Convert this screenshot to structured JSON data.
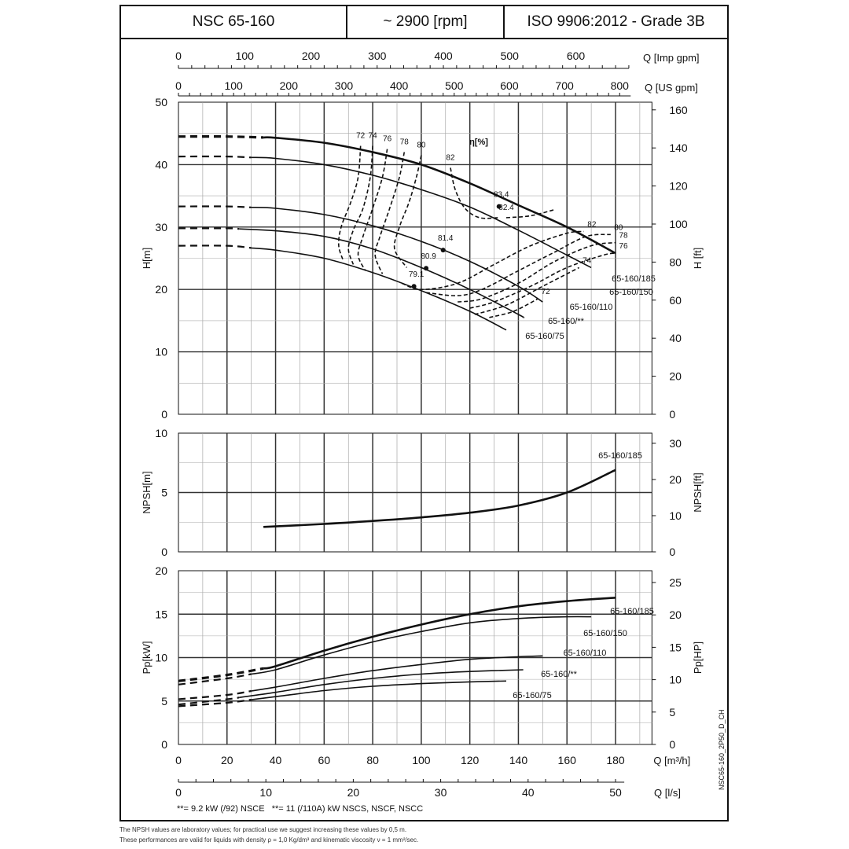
{
  "header": {
    "model": "NSC 65-160",
    "speed": "~ 2900 [rpm]",
    "standard": "ISO 9906:2012 - Grade 3B"
  },
  "notes": [
    "**= 9.2 kW (/92) NSCE",
    "**= 11 (/110A) kW NSCS, NSCF, NSCC"
  ],
  "footnotes": [
    "The NPSH values are laboratory values; for practical use we suggest increasing these values by 0,5 m.",
    "These performances are valid for liquids with density ρ = 1,0 Kg/dm³ and kinematic viscosity ν = 1 mm²/sec."
  ],
  "drawing_code": "NSC65-160_2P50_D_CH",
  "colors": {
    "line": "#111111",
    "grid": "#555555",
    "background": "#ffffff"
  },
  "chart_data": {
    "type": "line",
    "x_axes": {
      "m3h": {
        "label": "Q [m³/h]",
        "ticks": [
          0,
          20,
          40,
          60,
          80,
          100,
          120,
          140,
          160,
          180
        ],
        "range": [
          0,
          195
        ]
      },
      "ls": {
        "label": "Q [l/s]",
        "ticks": [
          0,
          10,
          20,
          30,
          40,
          50
        ]
      },
      "us_gpm": {
        "label": "Q [US gpm]",
        "ticks": [
          0,
          100,
          200,
          300,
          400,
          500,
          600,
          700,
          800
        ]
      },
      "imp_gpm": {
        "label": "Q [Imp gpm]",
        "ticks": [
          0,
          100,
          200,
          300,
          400,
          500,
          600
        ]
      }
    },
    "panels": [
      {
        "id": "head",
        "ylabel": "H[m]",
        "ylabel_right": "H [ft]",
        "ylim": [
          0,
          50
        ],
        "yticks": [
          0,
          10,
          20,
          30,
          40,
          50
        ],
        "yticks_right": [
          0,
          20,
          40,
          60,
          80,
          100,
          120,
          140,
          160
        ],
        "efficiency_label": "η[%]",
        "series": [
          {
            "name": "65-160/185",
            "dash_to": 35,
            "x": [
              0,
              20,
              40,
              60,
              80,
              100,
              120,
              140,
              160,
              180
            ],
            "y": [
              44.5,
              44.5,
              44.3,
              43.5,
              42.0,
              40.0,
              37.0,
              33.5,
              30.0,
              25.8
            ]
          },
          {
            "name": "65-160/150",
            "dash_to": 30,
            "x": [
              0,
              20,
              40,
              60,
              80,
              100,
              120,
              140,
              160,
              170
            ],
            "y": [
              41.3,
              41.3,
              41.0,
              40.0,
              38.3,
              36.0,
              33.2,
              29.5,
              25.5,
              23.5
            ]
          },
          {
            "name": "65-160/110",
            "dash_to": 30,
            "x": [
              0,
              20,
              40,
              60,
              80,
              100,
              120,
              140,
              150
            ],
            "y": [
              33.3,
              33.3,
              33.0,
              32.0,
              30.2,
              27.7,
              24.5,
              20.5,
              18.0
            ]
          },
          {
            "name": "65-160/**",
            "dash_to": 25,
            "x": [
              0,
              20,
              40,
              60,
              80,
              100,
              120,
              140,
              142
            ],
            "y": [
              29.8,
              29.8,
              29.4,
              28.5,
              26.5,
              23.5,
              20.0,
              16.0,
              15.5
            ]
          },
          {
            "name": "65-160/75",
            "dash_to": 30,
            "x": [
              0,
              20,
              40,
              60,
              80,
              100,
              120,
              135
            ],
            "y": [
              27.0,
              27.0,
              26.3,
              25.0,
              22.7,
              19.8,
              16.5,
              13.5
            ]
          }
        ],
        "bep_points": [
          {
            "label": "83.4",
            "x": 132,
            "y": 33.3
          },
          {
            "label": "81.4",
            "x": 109,
            "y": 26.3
          },
          {
            "label": "80.9",
            "x": 102,
            "y": 23.4
          },
          {
            "label": "79.1",
            "x": 97,
            "y": 20.5
          }
        ],
        "efficiency_contours": [
          {
            "label": "72",
            "x": [
              75,
              74,
              71,
              67,
              66,
              68
            ],
            "y": [
              43.0,
              38.0,
              34.0,
              30.0,
              27.0,
              24.5
            ]
          },
          {
            "label": "74",
            "x": [
              80,
              79,
              76,
              72,
              70,
              72
            ],
            "y": [
              43.0,
              38.0,
              33.0,
              29.5,
              26.5,
              24.0
            ]
          },
          {
            "label": "76",
            "x": [
              86,
              84,
              80,
              76,
              74,
              77
            ],
            "y": [
              42.5,
              38.0,
              33.0,
              28.5,
              25.5,
              23.0
            ]
          },
          {
            "label": "78",
            "x": [
              93,
              91,
              87,
              83,
              81,
              84
            ],
            "y": [
              42.0,
              38.0,
              33.0,
              28.5,
              25.5,
              22.5
            ]
          },
          {
            "label": "80",
            "x": [
              100,
              98,
              95,
              91,
              89,
              94
            ],
            "y": [
              41.5,
              38.0,
              34.0,
              30.0,
              26.5,
              23.5
            ]
          },
          {
            "label": "82",
            "x": [
              112,
              114,
              118,
              124,
              132
            ],
            "y": [
              39.5,
              36.0,
              33.0,
              31.5,
              31.5
            ]
          },
          {
            "label": "82.4",
            "x": [
              135,
              145,
              155
            ],
            "y": [
              31.5,
              31.8,
              32.8
            ]
          },
          {
            "label": "82",
            "x": [
              92,
              100,
              115,
              130,
              145,
              160,
              167
            ],
            "y": [
              21.0,
              20.0,
              21.0,
              24.0,
              27.0,
              29.0,
              29.3
            ]
          },
          {
            "label": "80",
            "x": [
              102,
              115,
              125,
              140,
              155,
              168,
              178
            ],
            "y": [
              19.5,
              19.0,
              20.0,
              23.0,
              26.0,
              28.5,
              28.8
            ]
          },
          {
            "label": "78",
            "x": [
              115,
              125,
              140,
              155,
              170,
              180
            ],
            "y": [
              18.0,
              18.5,
              21.0,
              24.5,
              27.0,
              27.5
            ]
          },
          {
            "label": "76",
            "x": [
              120,
              130,
              145,
              160,
              175,
              180
            ],
            "y": [
              17.0,
              18.0,
              20.5,
              23.5,
              25.5,
              25.8
            ]
          },
          {
            "label": "74",
            "x": [
              122,
              135,
              150,
              165
            ],
            "y": [
              16.0,
              17.5,
              20.5,
              23.5
            ]
          },
          {
            "label": "72",
            "x": [
              128,
              138,
              148
            ],
            "y": [
              15.5,
              16.5,
              18.5
            ]
          }
        ],
        "curve_labels": [
          "65-160/185",
          "65-160/150",
          "65-160/110",
          "65-160/**",
          "65-160/75"
        ]
      },
      {
        "id": "npsh",
        "ylabel": "NPSH[m]",
        "ylabel_right": "NPSH[ft]",
        "ylim": [
          0,
          10
        ],
        "yticks": [
          0,
          5,
          10
        ],
        "yticks_right": [
          0,
          10,
          20,
          30
        ],
        "series": [
          {
            "name": "65-160/185",
            "x": [
              35,
              60,
              80,
              100,
              120,
              140,
              160,
              180
            ],
            "y": [
              2.1,
              2.35,
              2.6,
              2.9,
              3.3,
              3.9,
              5.0,
              6.9
            ]
          }
        ]
      },
      {
        "id": "power",
        "ylabel": "Pp[kW]",
        "ylabel_right": "Pp[HP]",
        "ylim": [
          0,
          20
        ],
        "yticks": [
          0,
          5,
          10,
          15,
          20
        ],
        "yticks_right": [
          0,
          5,
          10,
          15,
          20,
          25
        ],
        "series": [
          {
            "name": "65-160/185",
            "dash_to": 35,
            "x": [
              0,
              20,
              40,
              60,
              80,
              100,
              120,
              140,
              160,
              180
            ],
            "y": [
              7.3,
              8.0,
              9.0,
              10.8,
              12.4,
              13.8,
              15.0,
              15.9,
              16.5,
              16.9
            ]
          },
          {
            "name": "65-160/150",
            "dash_to": 30,
            "x": [
              0,
              20,
              40,
              60,
              80,
              100,
              120,
              140,
              160,
              170
            ],
            "y": [
              6.9,
              7.6,
              8.6,
              10.3,
              11.8,
              13.0,
              14.0,
              14.5,
              14.7,
              14.7
            ]
          },
          {
            "name": "65-160/110",
            "dash_to": 30,
            "x": [
              0,
              20,
              40,
              60,
              80,
              100,
              120,
              140,
              150
            ],
            "y": [
              5.2,
              5.7,
              6.6,
              7.6,
              8.5,
              9.2,
              9.8,
              10.1,
              10.2
            ]
          },
          {
            "name": "65-160/**",
            "dash_to": 25,
            "x": [
              0,
              20,
              40,
              60,
              80,
              100,
              120,
              142
            ],
            "y": [
              4.6,
              5.2,
              6.0,
              6.9,
              7.6,
              8.1,
              8.4,
              8.6
            ]
          },
          {
            "name": "65-160/75",
            "dash_to": 30,
            "x": [
              0,
              20,
              40,
              60,
              80,
              100,
              120,
              135
            ],
            "y": [
              4.4,
              4.8,
              5.5,
              6.2,
              6.7,
              7.0,
              7.2,
              7.3
            ]
          }
        ]
      }
    ]
  }
}
